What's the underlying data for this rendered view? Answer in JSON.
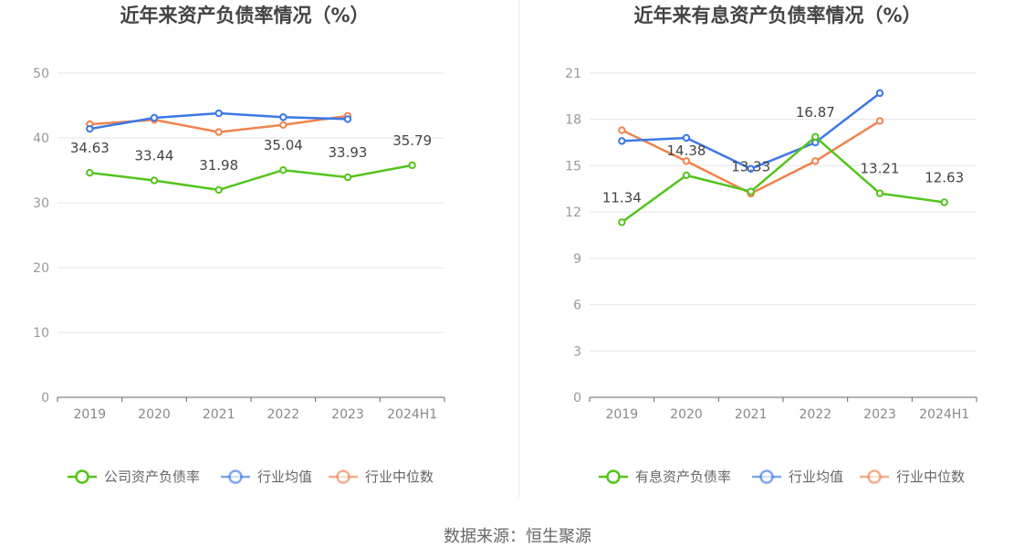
{
  "source_text": "数据来源：恒生聚源",
  "chart_data": [
    {
      "type": "line",
      "title": "近年来资产负债率情况（%）",
      "categories": [
        "2019",
        "2020",
        "2021",
        "2022",
        "2023",
        "2024H1"
      ],
      "ylim": [
        0,
        50
      ],
      "yticks": [
        0,
        10,
        20,
        30,
        40,
        50
      ],
      "grid": true,
      "legend_position": "bottom",
      "series": [
        {
          "name": "公司资产负债率",
          "color": "#52c41a",
          "labels": true,
          "values": [
            34.63,
            33.44,
            31.98,
            35.04,
            33.93,
            35.79
          ]
        },
        {
          "name": "行业均值",
          "color": "#3b78e7",
          "labels": false,
          "values": [
            41.4,
            43.1,
            43.8,
            43.2,
            42.9,
            null
          ]
        },
        {
          "name": "行业中位数",
          "color": "#f0834d",
          "labels": false,
          "values": [
            42.1,
            42.8,
            40.9,
            42.0,
            43.4,
            null
          ]
        }
      ]
    },
    {
      "type": "line",
      "title": "近年来有息资产负债率情况（%）",
      "categories": [
        "2019",
        "2020",
        "2021",
        "2022",
        "2023",
        "2024H1"
      ],
      "ylim": [
        0,
        21
      ],
      "yticks": [
        0,
        3,
        6,
        9,
        12,
        15,
        18,
        21
      ],
      "grid": true,
      "legend_position": "bottom",
      "series": [
        {
          "name": "有息资产负债率",
          "color": "#52c41a",
          "labels": true,
          "values": [
            11.34,
            14.38,
            13.33,
            16.87,
            13.21,
            12.63
          ]
        },
        {
          "name": "行业均值",
          "color": "#3b78e7",
          "labels": false,
          "values": [
            16.6,
            16.8,
            14.8,
            16.5,
            19.7,
            null
          ]
        },
        {
          "name": "行业中位数",
          "color": "#f0834d",
          "labels": false,
          "values": [
            17.3,
            15.3,
            13.2,
            15.3,
            17.9,
            null
          ]
        }
      ]
    }
  ]
}
